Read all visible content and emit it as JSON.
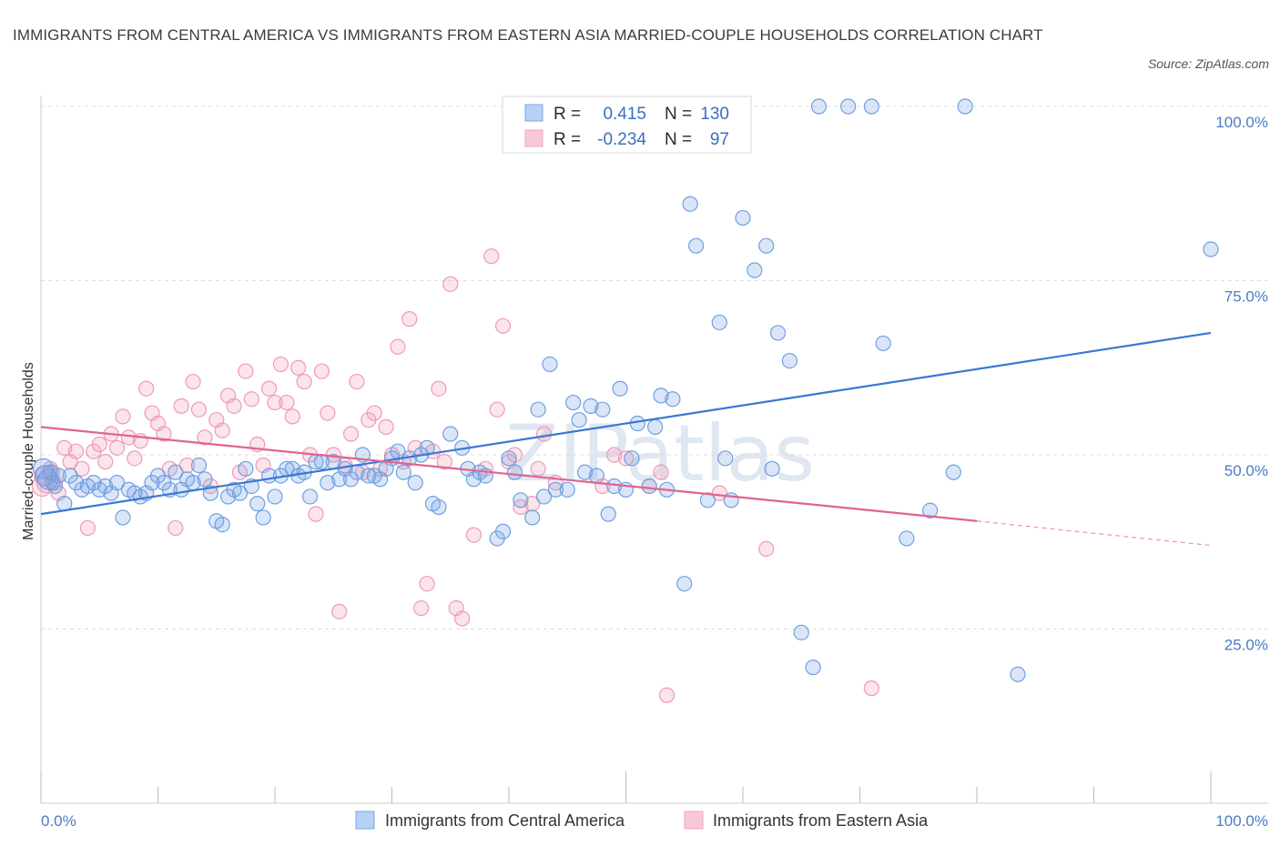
{
  "chart_data": {
    "type": "scatter",
    "title": "IMMIGRANTS FROM CENTRAL AMERICA VS IMMIGRANTS FROM EASTERN ASIA MARRIED-COUPLE HOUSEHOLDS CORRELATION CHART",
    "source": "Source: ZipAtlas.com",
    "ylabel": "Married-couple Households",
    "xlabel": "",
    "xlim": [
      0,
      100
    ],
    "ylim": [
      0,
      100
    ],
    "x_tick_labels": [
      "0.0%",
      "100.0%"
    ],
    "y_ticks": [
      25,
      50,
      75,
      100
    ],
    "y_tick_labels": [
      "25.0%",
      "50.0%",
      "75.0%",
      "100.0%"
    ],
    "watermark": "ZIPatlas",
    "legend": {
      "r_label": "R =",
      "n_label": "N =",
      "entries": [
        {
          "r": "0.415",
          "n": "130"
        },
        {
          "r": "-0.234",
          "n": "97"
        }
      ]
    },
    "series": [
      {
        "name": "Immigrants from Central America",
        "color": "#7aa7e6",
        "line_color": "#3a78d4",
        "trend": {
          "x0": 0,
          "y0": 41.5,
          "x1": 100,
          "y1": 67.5
        },
        "points": [
          [
            0.2,
            48
          ],
          [
            0.4,
            47
          ],
          [
            0.6,
            46.5
          ],
          [
            0.8,
            47.5
          ],
          [
            1,
            46
          ],
          [
            1.2,
            45.5
          ],
          [
            1.5,
            47
          ],
          [
            2,
            43
          ],
          [
            2.5,
            47
          ],
          [
            3,
            46
          ],
          [
            3.5,
            45
          ],
          [
            4,
            45.5
          ],
          [
            4.5,
            46
          ],
          [
            5,
            45
          ],
          [
            5.5,
            45.5
          ],
          [
            6,
            44.5
          ],
          [
            6.5,
            46
          ],
          [
            7,
            41
          ],
          [
            7.5,
            45
          ],
          [
            8,
            44.5
          ],
          [
            8.5,
            44
          ],
          [
            9,
            44.5
          ],
          [
            9.5,
            46
          ],
          [
            10,
            47
          ],
          [
            10.5,
            46
          ],
          [
            11,
            45
          ],
          [
            11.5,
            47.5
          ],
          [
            12,
            45
          ],
          [
            12.5,
            46.5
          ],
          [
            13,
            46
          ],
          [
            13.5,
            48.5
          ],
          [
            14,
            46.5
          ],
          [
            14.5,
            44.5
          ],
          [
            15,
            40.5
          ],
          [
            15.5,
            40
          ],
          [
            16,
            44
          ],
          [
            16.5,
            45
          ],
          [
            17,
            44.5
          ],
          [
            17.5,
            48
          ],
          [
            18,
            45.5
          ],
          [
            18.5,
            43
          ],
          [
            19,
            41
          ],
          [
            19.5,
            47
          ],
          [
            20,
            44
          ],
          [
            20.5,
            47
          ],
          [
            21,
            48
          ],
          [
            21.5,
            48
          ],
          [
            22,
            47
          ],
          [
            22.5,
            47.5
          ],
          [
            23,
            44
          ],
          [
            23.5,
            49
          ],
          [
            24,
            49
          ],
          [
            24.5,
            46
          ],
          [
            25,
            49
          ],
          [
            25.5,
            46.5
          ],
          [
            26,
            48
          ],
          [
            26.5,
            46.5
          ],
          [
            27,
            47.5
          ],
          [
            27.5,
            50
          ],
          [
            28,
            47
          ],
          [
            28.5,
            47
          ],
          [
            29,
            46.5
          ],
          [
            29.5,
            48
          ],
          [
            30,
            49.5
          ],
          [
            30.5,
            50.5
          ],
          [
            31,
            47.5
          ],
          [
            31.5,
            49.5
          ],
          [
            32,
            46
          ],
          [
            32.5,
            50
          ],
          [
            33,
            51
          ],
          [
            33.5,
            43
          ],
          [
            34,
            42.5
          ],
          [
            35,
            53
          ],
          [
            36,
            51
          ],
          [
            36.5,
            48
          ],
          [
            37,
            46.5
          ],
          [
            37.5,
            47.5
          ],
          [
            38,
            47
          ],
          [
            39,
            38
          ],
          [
            39.5,
            39
          ],
          [
            40,
            49.5
          ],
          [
            40.5,
            47.5
          ],
          [
            41,
            43.5
          ],
          [
            42,
            41
          ],
          [
            42.5,
            56.5
          ],
          [
            43,
            44
          ],
          [
            43.5,
            63
          ],
          [
            44,
            45
          ],
          [
            45,
            45
          ],
          [
            45.5,
            57.5
          ],
          [
            46,
            55
          ],
          [
            46.5,
            47.5
          ],
          [
            47,
            57
          ],
          [
            47.5,
            47
          ],
          [
            48,
            56.5
          ],
          [
            48.5,
            41.5
          ],
          [
            49,
            45.5
          ],
          [
            49.5,
            59.5
          ],
          [
            50,
            45
          ],
          [
            50.5,
            49.5
          ],
          [
            51,
            54.5
          ],
          [
            52,
            45.5
          ],
          [
            52.5,
            54
          ],
          [
            53,
            58.5
          ],
          [
            53.5,
            45
          ],
          [
            54,
            58
          ],
          [
            55,
            31.5
          ],
          [
            55.5,
            86
          ],
          [
            56,
            80
          ],
          [
            57,
            43.5
          ],
          [
            58,
            69
          ],
          [
            58.5,
            49.5
          ],
          [
            59,
            43.5
          ],
          [
            60,
            84
          ],
          [
            61,
            76.5
          ],
          [
            62,
            80
          ],
          [
            62.5,
            48
          ],
          [
            63,
            67.5
          ],
          [
            64,
            63.5
          ],
          [
            65,
            24.5
          ],
          [
            66,
            19.5
          ],
          [
            66.5,
            100
          ],
          [
            69,
            100
          ],
          [
            71,
            100
          ],
          [
            72,
            66
          ],
          [
            74,
            38
          ],
          [
            76,
            42
          ],
          [
            78,
            47.5
          ],
          [
            79,
            100
          ],
          [
            83.5,
            18.5
          ],
          [
            100,
            79.5
          ]
        ]
      },
      {
        "name": "Immigrants from Eastern Asia",
        "color": "#f2a6bf",
        "line_color": "#e0648f",
        "trend": {
          "x0": 0,
          "y0": 54,
          "x1": 80,
          "y1": 40.5
        },
        "trend_ext": {
          "x0": 80,
          "y0": 40.5,
          "x1": 100,
          "y1": 37
        },
        "points": [
          [
            0.1,
            45.5
          ],
          [
            0.3,
            47
          ],
          [
            0.5,
            46
          ],
          [
            0.8,
            48
          ],
          [
            1,
            47.5
          ],
          [
            1.2,
            46
          ],
          [
            1.5,
            44.5
          ],
          [
            2,
            51
          ],
          [
            2.5,
            49
          ],
          [
            3,
            50.5
          ],
          [
            3.5,
            48
          ],
          [
            4,
            39.5
          ],
          [
            4.5,
            50.5
          ],
          [
            5,
            51.5
          ],
          [
            5.5,
            49
          ],
          [
            6,
            53
          ],
          [
            6.5,
            51
          ],
          [
            7,
            55.5
          ],
          [
            7.5,
            52.5
          ],
          [
            8,
            49.5
          ],
          [
            8.5,
            52
          ],
          [
            9,
            59.5
          ],
          [
            9.5,
            56
          ],
          [
            10,
            54.5
          ],
          [
            10.5,
            53
          ],
          [
            11,
            48
          ],
          [
            11.5,
            39.5
          ],
          [
            12,
            57
          ],
          [
            12.5,
            48.5
          ],
          [
            13,
            60.5
          ],
          [
            13.5,
            56.5
          ],
          [
            14,
            52.5
          ],
          [
            14.5,
            45.5
          ],
          [
            15,
            55
          ],
          [
            15.5,
            53.5
          ],
          [
            16,
            58.5
          ],
          [
            16.5,
            57
          ],
          [
            17,
            47.5
          ],
          [
            17.5,
            62
          ],
          [
            18,
            58
          ],
          [
            18.5,
            51.5
          ],
          [
            19,
            48.5
          ],
          [
            19.5,
            59.5
          ],
          [
            20,
            57.5
          ],
          [
            20.5,
            63
          ],
          [
            21,
            57.5
          ],
          [
            21.5,
            55.5
          ],
          [
            22,
            62.5
          ],
          [
            22.5,
            60.5
          ],
          [
            23,
            50
          ],
          [
            23.5,
            41.5
          ],
          [
            24,
            62
          ],
          [
            24.5,
            56
          ],
          [
            25,
            50
          ],
          [
            25.5,
            27.5
          ],
          [
            26,
            48.5
          ],
          [
            26.5,
            53
          ],
          [
            27,
            60.5
          ],
          [
            27.5,
            47.5
          ],
          [
            28,
            55
          ],
          [
            28.5,
            56
          ],
          [
            29,
            48
          ],
          [
            29.5,
            54
          ],
          [
            30,
            50
          ],
          [
            30.5,
            65.5
          ],
          [
            31,
            49
          ],
          [
            31.5,
            69.5
          ],
          [
            32,
            51
          ],
          [
            32.5,
            28
          ],
          [
            33,
            31.5
          ],
          [
            33.5,
            50.5
          ],
          [
            34,
            59.5
          ],
          [
            34.5,
            49
          ],
          [
            35,
            74.5
          ],
          [
            35.5,
            28
          ],
          [
            36,
            26.5
          ],
          [
            37,
            38.5
          ],
          [
            38,
            48
          ],
          [
            38.5,
            78.5
          ],
          [
            39,
            56.5
          ],
          [
            39.5,
            68.5
          ],
          [
            40,
            49
          ],
          [
            40.5,
            50
          ],
          [
            41,
            42.5
          ],
          [
            42,
            43
          ],
          [
            42.5,
            48
          ],
          [
            43,
            53
          ],
          [
            44,
            46
          ],
          [
            48,
            45.5
          ],
          [
            49,
            50
          ],
          [
            50,
            49.5
          ],
          [
            52,
            45.5
          ],
          [
            53,
            47.5
          ],
          [
            53.5,
            15.5
          ],
          [
            58,
            44.5
          ],
          [
            62,
            36.5
          ],
          [
            71,
            16.5
          ]
        ]
      }
    ]
  }
}
